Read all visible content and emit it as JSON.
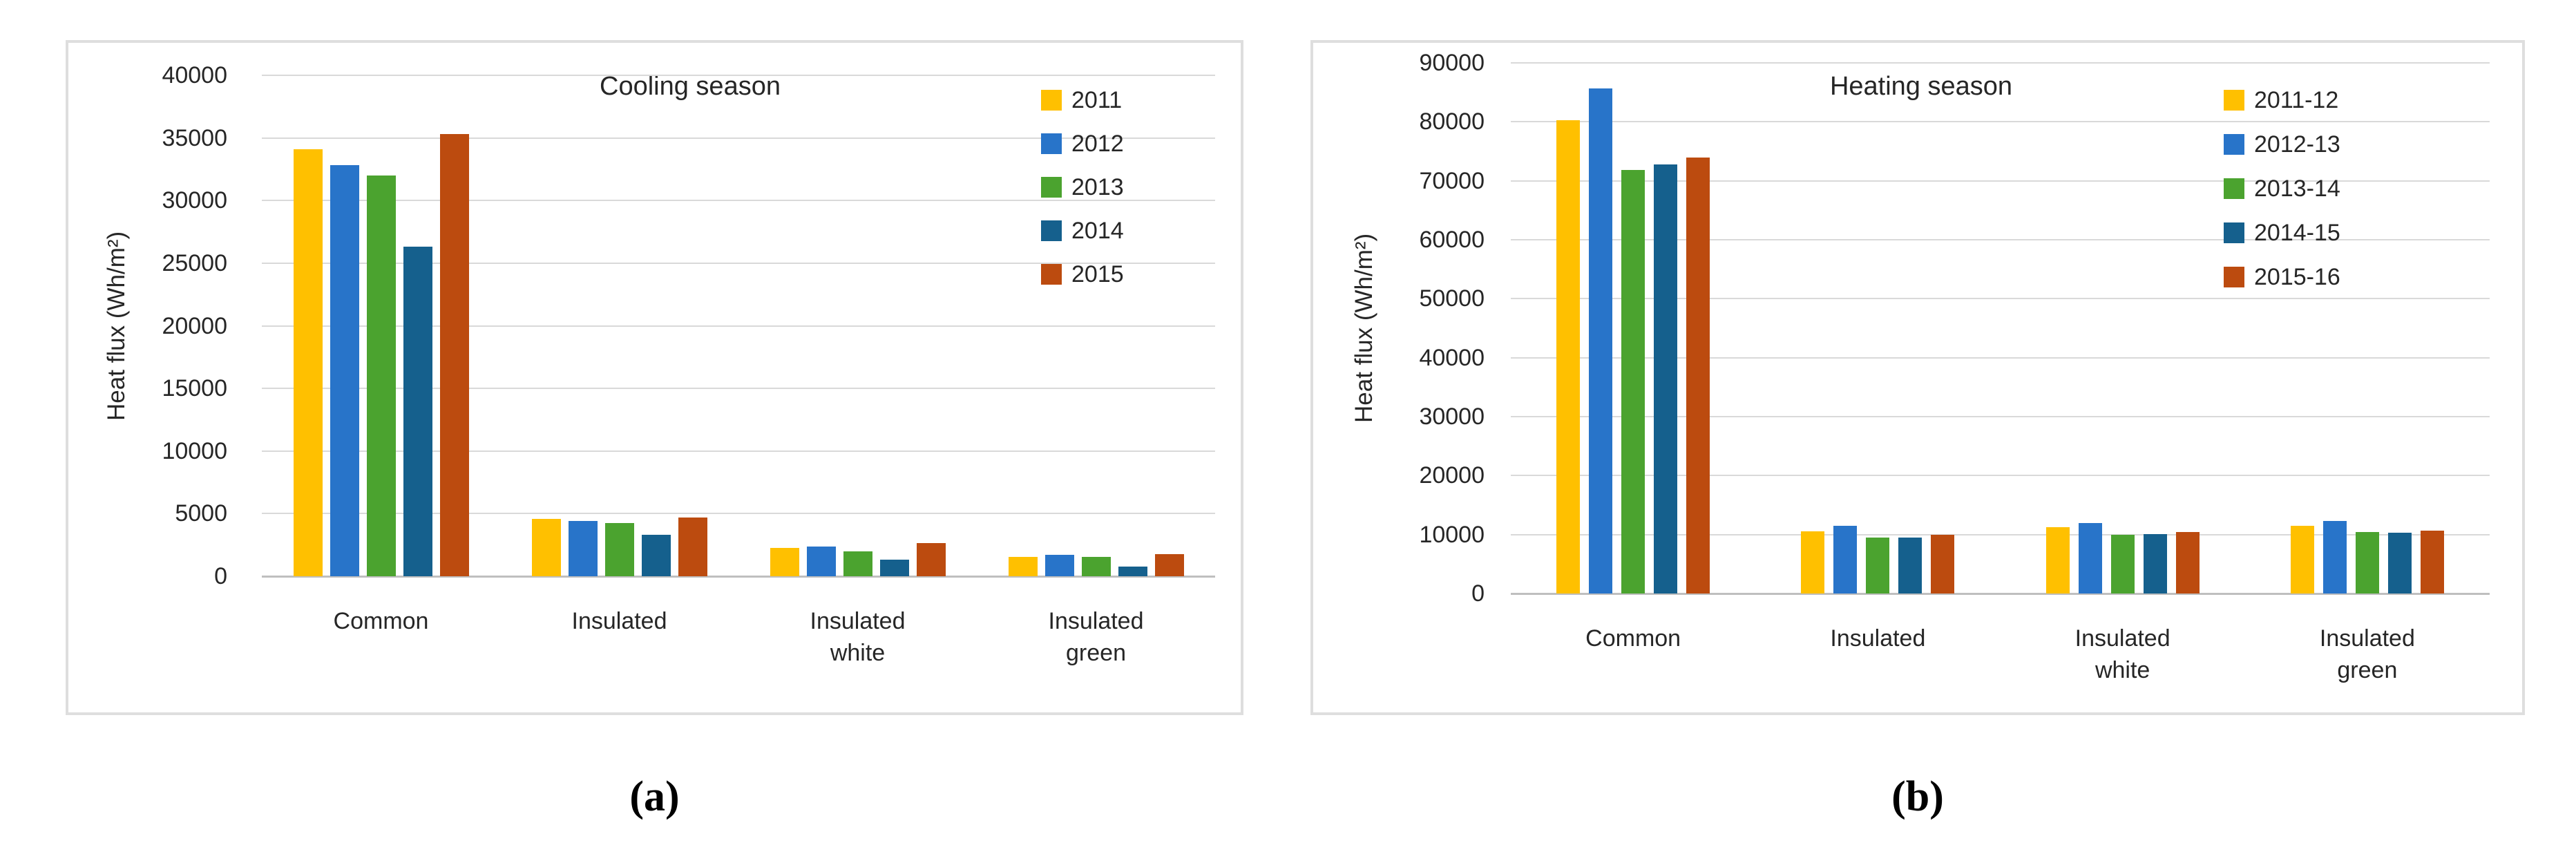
{
  "figure": {
    "background": "#ffffff",
    "grid_color": "#d9d9d9",
    "axis_color": "#bfbfbf",
    "text_color": "#262626"
  },
  "captions": {
    "a": "(a)",
    "b": "(b)"
  },
  "chart_data": [
    {
      "type": "bar",
      "title": "Cooling season",
      "ylabel": "Heat flux (Wh/m²)",
      "categories": [
        "Common",
        "Insulated",
        "Insulated white",
        "Insulated green"
      ],
      "series": [
        {
          "name": "2011",
          "color": "#FFC000",
          "values": [
            34100,
            4600,
            2250,
            1520
          ]
        },
        {
          "name": "2012",
          "color": "#2874C9",
          "values": [
            32800,
            4400,
            2350,
            1700
          ]
        },
        {
          "name": "2013",
          "color": "#4BA32F",
          "values": [
            32000,
            4250,
            2000,
            1520
          ]
        },
        {
          "name": "2014",
          "color": "#15608D",
          "values": [
            26300,
            3300,
            1350,
            790
          ]
        },
        {
          "name": "2015",
          "color": "#BC4B0F",
          "values": [
            35300,
            4700,
            2650,
            1750
          ]
        }
      ],
      "ylim": [
        0,
        40000
      ],
      "ytick_step": 5000,
      "grid": true,
      "legend_position": "top-right"
    },
    {
      "type": "bar",
      "title": "Heating season",
      "ylabel": "Heat flux (Wh/m²)",
      "categories": [
        "Common",
        "Insulated",
        "Insulated white",
        "Insulated green"
      ],
      "series": [
        {
          "name": "2011-12",
          "color": "#FFC000",
          "values": [
            80300,
            10600,
            11200,
            11500
          ]
        },
        {
          "name": "2012-13",
          "color": "#2874C9",
          "values": [
            85700,
            11500,
            12000,
            12300
          ]
        },
        {
          "name": "2013-14",
          "color": "#4BA32F",
          "values": [
            71800,
            9500,
            10000,
            10400
          ]
        },
        {
          "name": "2014-15",
          "color": "#15608D",
          "values": [
            72800,
            9500,
            10100,
            10300
          ]
        },
        {
          "name": "2015-16",
          "color": "#BC4B0F",
          "values": [
            74000,
            10000,
            10400,
            10700
          ]
        }
      ],
      "ylim": [
        0,
        90000
      ],
      "ytick_step": 10000,
      "grid": true,
      "legend_position": "top-right"
    }
  ]
}
